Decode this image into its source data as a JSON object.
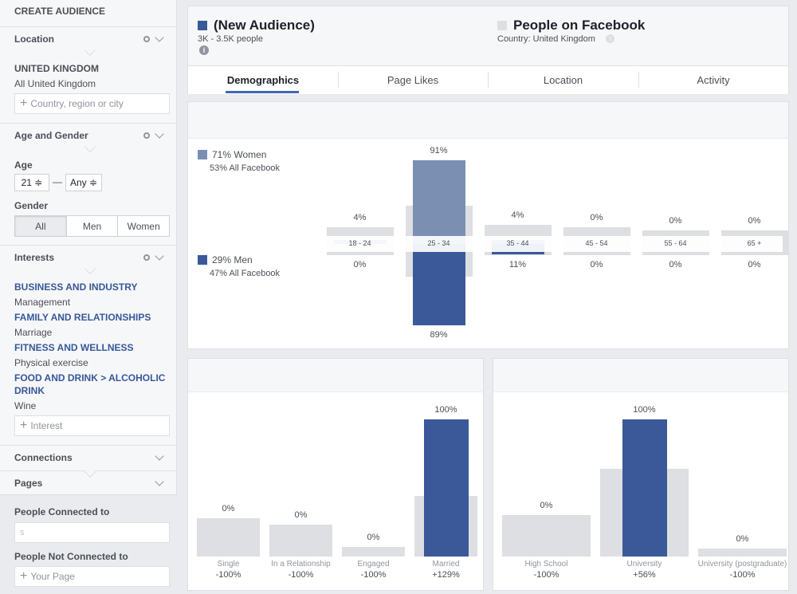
{
  "sidebar": {
    "title": "CREATE AUDIENCE",
    "location": {
      "header": "Location",
      "country": "UNITED KINGDOM",
      "sub": "All United Kingdom",
      "placeholder": "Country, region or city"
    },
    "age_gender": {
      "header": "Age and Gender",
      "age_label": "Age",
      "age_min": "21 ≑",
      "dash": "—",
      "age_max": "Any ≑",
      "gender_label": "Gender",
      "gender_options": [
        "All",
        "Men",
        "Women"
      ]
    },
    "interests": {
      "header": "Interests",
      "items": [
        {
          "category": "BUSINESS AND INDUSTRY",
          "value": "Management"
        },
        {
          "category": "FAMILY AND RELATIONSHIPS",
          "value": "Marriage"
        },
        {
          "category": "FITNESS AND WELLNESS",
          "value": "Physical exercise"
        },
        {
          "category": "FOOD AND DRINK > ALCOHOLIC DRINK",
          "value": "Wine"
        }
      ],
      "placeholder": "Interest"
    },
    "connections": {
      "header": "Connections"
    },
    "pages": {
      "header": "Pages"
    },
    "people_connected": {
      "label": "People Connected to",
      "value": "s"
    },
    "people_not_connected": {
      "label": "People Not Connected to",
      "placeholder": "Your Page"
    }
  },
  "header": {
    "audience_title": "(New Audience)",
    "audience_size": "3K - 3.5K people",
    "info_glyph": "i",
    "compare_title": "People on Facebook",
    "compare_sub": "Country: United Kingdom",
    "colors": {
      "audience": "#3b5998",
      "compare": "#dddfe2"
    }
  },
  "tabs": [
    "Demographics",
    "Page Likes",
    "Location",
    "Activity"
  ],
  "demographics": {
    "women_legend": "71% Women",
    "women_sub": "53% All Facebook",
    "men_legend": "29% Men",
    "men_sub": "47% All Facebook",
    "women_color": "#7b8fb3",
    "men_color": "#3b5998"
  },
  "chart_data": [
    {
      "type": "bar",
      "title": "",
      "categories": [
        "18 - 24",
        "25 - 34",
        "35 - 44",
        "45 - 54",
        "55 - 64",
        "65 +"
      ],
      "series": [
        {
          "name": "71% Women",
          "values": [
            4,
            91,
            4,
            0,
            0,
            0
          ]
        },
        {
          "name": "29% Men",
          "values": [
            0,
            89,
            11,
            0,
            0,
            0
          ]
        }
      ],
      "labels_women": [
        "4%",
        "91%",
        "4%",
        "0%",
        "0%",
        "0%"
      ],
      "labels_men": [
        "0%",
        "89%",
        "11%",
        "0%",
        "0%",
        "0%"
      ]
    },
    {
      "type": "bar",
      "title": "",
      "categories": [
        "Single",
        "In a Relationship",
        "Engaged",
        "Married"
      ],
      "series": [
        {
          "values": [
            0,
            0,
            0,
            100
          ]
        }
      ],
      "labels": [
        "0%",
        "0%",
        "0%",
        "100%"
      ],
      "deltas": [
        "-100%",
        "-100%",
        "-100%",
        "+129%"
      ]
    },
    {
      "type": "bar",
      "title": "",
      "categories": [
        "High School",
        "University",
        "University (postgraduate)"
      ],
      "series": [
        {
          "values": [
            0,
            100,
            0
          ]
        }
      ],
      "labels": [
        "0%",
        "100%",
        "0%"
      ],
      "deltas": [
        "-100%",
        "+56%",
        "-100%"
      ]
    }
  ]
}
